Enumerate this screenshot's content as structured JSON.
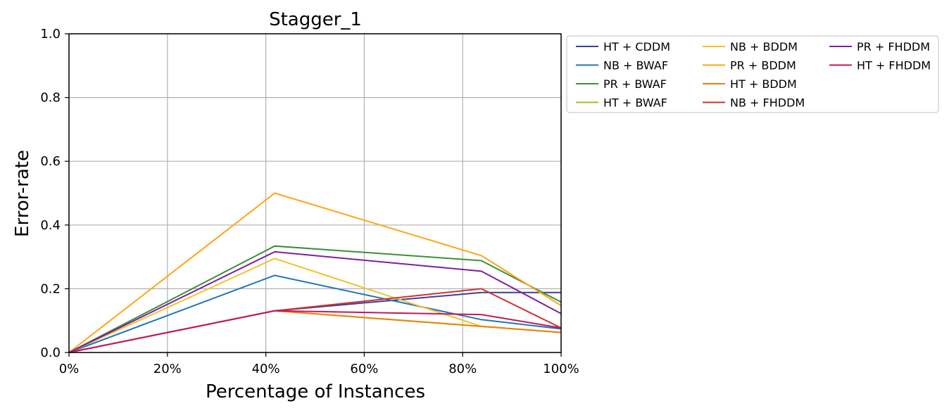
{
  "chart_data": {
    "type": "line",
    "title": "Stagger_1",
    "xlabel": "Percentage of Instances",
    "ylabel": "Error-rate",
    "xlim": [
      0,
      100
    ],
    "ylim": [
      0,
      1.0
    ],
    "x_ticks": [
      0,
      20,
      40,
      60,
      80,
      100
    ],
    "x_tick_labels": [
      "0%",
      "20%",
      "40%",
      "60%",
      "80%",
      "100%"
    ],
    "y_ticks": [
      0,
      0.2,
      0.4,
      0.6,
      0.8,
      1.0
    ],
    "y_tick_labels": [
      "0.0",
      "0.2",
      "0.4",
      "0.6",
      "0.8",
      "1.0"
    ],
    "grid": true,
    "legend_position": "outside-right-top",
    "legend_columns": 3,
    "x": [
      0,
      41.8,
      83.8,
      100
    ],
    "series": [
      {
        "name": "HT + CDDM",
        "color": "#3b3f99",
        "values": [
          0,
          0.131,
          0.188,
          0.188
        ]
      },
      {
        "name": "NB + BWAF",
        "color": "#1f77b4",
        "values": [
          0,
          0.242,
          0.103,
          0.074
        ]
      },
      {
        "name": "PR + BWAF",
        "color": "#3a8f3a",
        "values": [
          0,
          0.334,
          0.288,
          0.158
        ]
      },
      {
        "name": "HT + BWAF",
        "color": "#b5b523",
        "values": [
          0,
          0.131,
          0.082,
          0.063
        ]
      },
      {
        "name": "NB + BDDM",
        "color": "#f2c12e",
        "values": [
          0,
          0.295,
          0.082,
          0.063
        ]
      },
      {
        "name": "PR + BDDM",
        "color": "#ffa515",
        "values": [
          0,
          0.5,
          0.304,
          0.147
        ]
      },
      {
        "name": "HT + BDDM",
        "color": "#e8820c",
        "values": [
          0,
          0.131,
          0.082,
          0.063
        ]
      },
      {
        "name": "NB + FHDDM",
        "color": "#d03030",
        "values": [
          0,
          0.131,
          0.2,
          0.077
        ]
      },
      {
        "name": "PR + FHDDM",
        "color": "#7d1fa0",
        "values": [
          0,
          0.316,
          0.255,
          0.122
        ]
      },
      {
        "name": "HT + FHDDM",
        "color": "#c2185b",
        "values": [
          0,
          0.131,
          0.119,
          0.077
        ]
      }
    ]
  }
}
